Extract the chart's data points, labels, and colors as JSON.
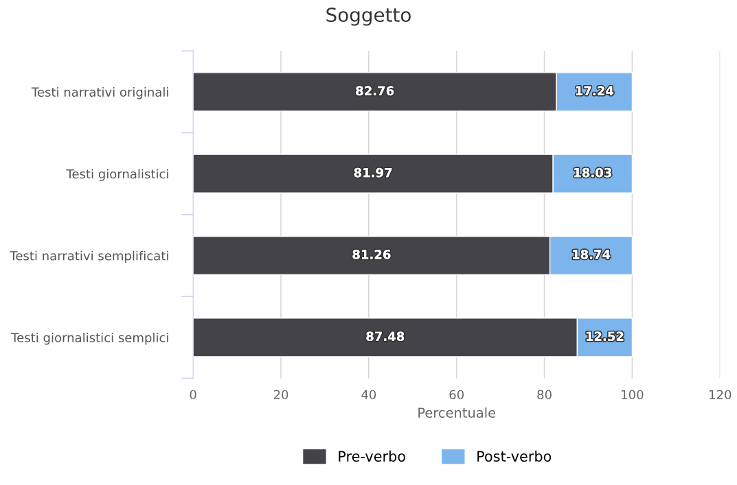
{
  "chart_data": {
    "type": "bar",
    "title": "Soggetto",
    "xlabel": "Percentuale",
    "orientation": "horizontal",
    "stacked": true,
    "categories": [
      "Testi narrativi originali",
      "Testi giornalistici",
      "Testi narrativi semplificati",
      "Testi giornalistici semplici"
    ],
    "series": [
      {
        "name": "Pre-verbo",
        "color": "#434348",
        "values": [
          82.76,
          81.97,
          81.26,
          87.48
        ]
      },
      {
        "name": "Post-verbo",
        "color": "#7cb5ec",
        "values": [
          17.24,
          18.03,
          18.74,
          12.52
        ]
      }
    ],
    "xlim": [
      0,
      120
    ],
    "xticks": [
      0,
      20,
      40,
      60,
      80,
      100,
      120
    ],
    "grid": "x",
    "legend": "bottom",
    "data_labels": true
  }
}
